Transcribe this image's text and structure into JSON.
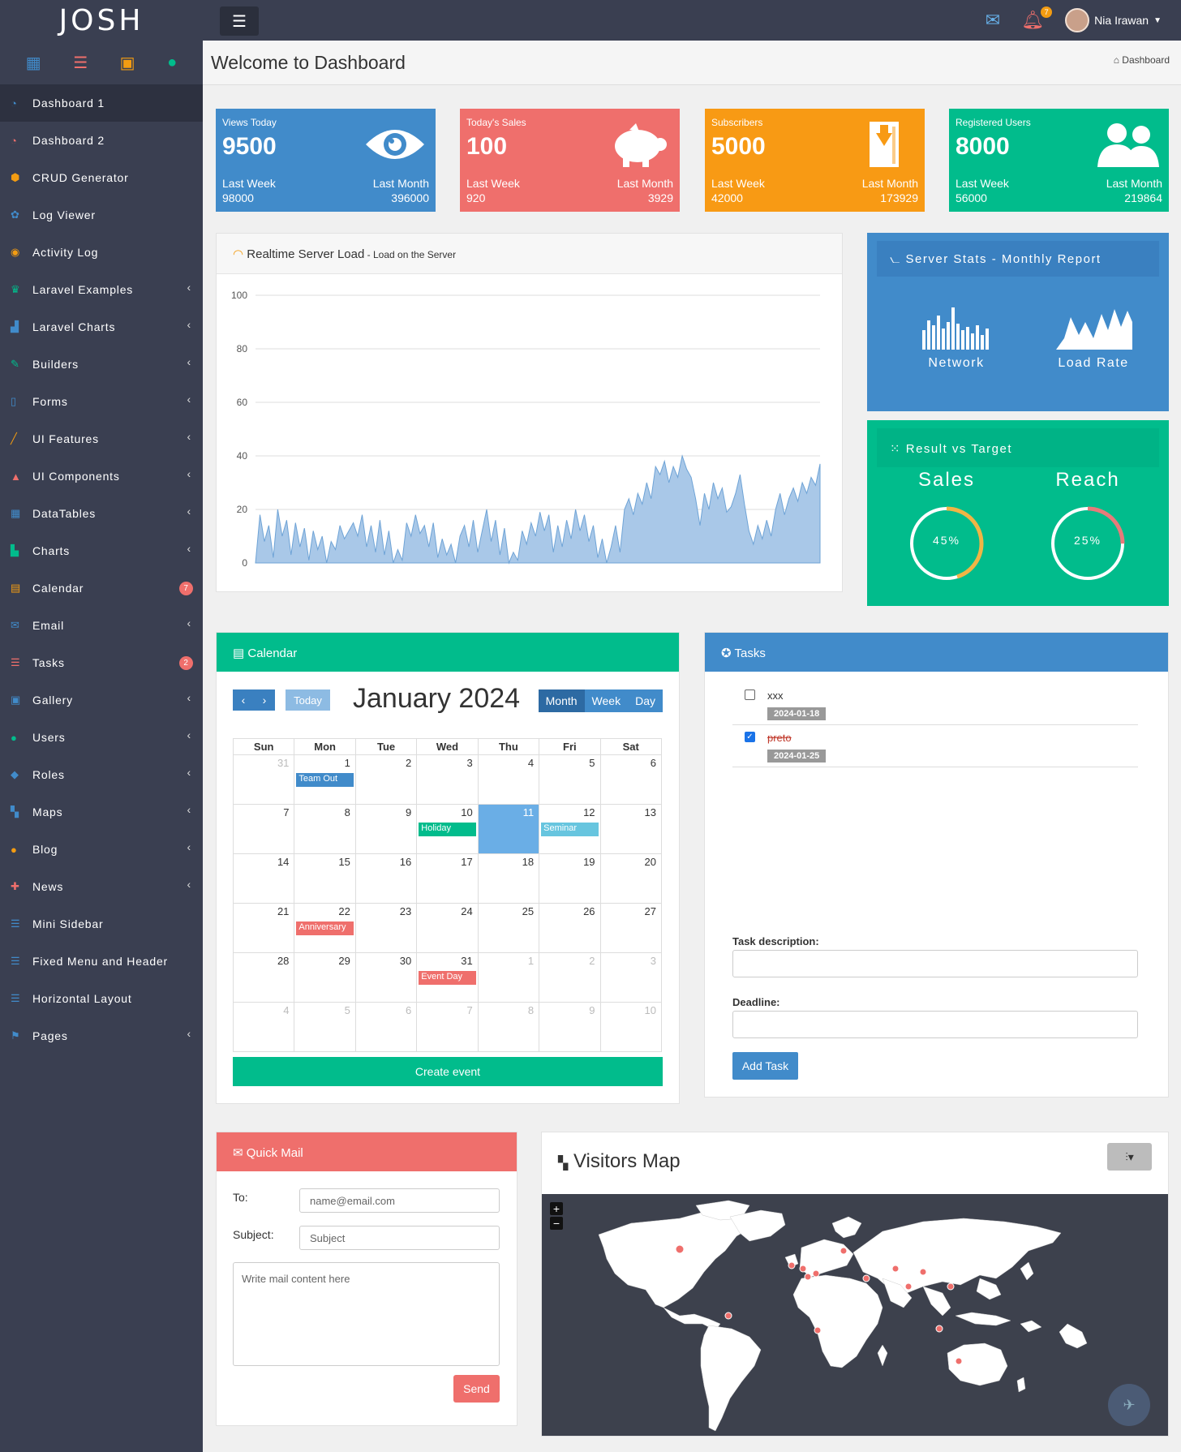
{
  "brand": "JOSH",
  "sidebar": {
    "items": [
      {
        "label": "Dashboard 1",
        "icon": "◔",
        "color": "#418bca",
        "active": true,
        "chev": false,
        "badge": ""
      },
      {
        "label": "Dashboard 2",
        "icon": "◔",
        "color": "#ef6f6c",
        "active": false,
        "chev": false,
        "badge": ""
      },
      {
        "label": "CRUD Generator",
        "icon": "⬢",
        "color": "#f39c12",
        "active": false,
        "chev": false,
        "badge": ""
      },
      {
        "label": "Log Viewer",
        "icon": "✿",
        "color": "#418bca",
        "active": false,
        "chev": false,
        "badge": ""
      },
      {
        "label": "Activity Log",
        "icon": "◉",
        "color": "#f39c12",
        "active": false,
        "chev": false,
        "badge": ""
      },
      {
        "label": "Laravel Examples",
        "icon": "♛",
        "color": "#01bc8c",
        "active": false,
        "chev": true,
        "badge": ""
      },
      {
        "label": "Laravel Charts",
        "icon": "▟",
        "color": "#418bca",
        "active": false,
        "chev": true,
        "badge": ""
      },
      {
        "label": "Builders",
        "icon": "✎",
        "color": "#01bc8c",
        "active": false,
        "chev": true,
        "badge": ""
      },
      {
        "label": "Forms",
        "icon": "▯",
        "color": "#418bca",
        "active": false,
        "chev": true,
        "badge": ""
      },
      {
        "label": "UI Features",
        "icon": "╱",
        "color": "#f39c12",
        "active": false,
        "chev": true,
        "badge": ""
      },
      {
        "label": "UI Components",
        "icon": "▲",
        "color": "#ef6f6c",
        "active": false,
        "chev": true,
        "badge": ""
      },
      {
        "label": "DataTables",
        "icon": "▦",
        "color": "#418bca",
        "active": false,
        "chev": true,
        "badge": ""
      },
      {
        "label": "Charts",
        "icon": "▙",
        "color": "#01bc8c",
        "active": false,
        "chev": true,
        "badge": ""
      },
      {
        "label": "Calendar",
        "icon": "▤",
        "color": "#f39c12",
        "active": false,
        "chev": false,
        "badge": "7"
      },
      {
        "label": "Email",
        "icon": "✉",
        "color": "#418bca",
        "active": false,
        "chev": true,
        "badge": ""
      },
      {
        "label": "Tasks",
        "icon": "☰",
        "color": "#ef6f6c",
        "active": false,
        "chev": false,
        "badge": "2"
      },
      {
        "label": "Gallery",
        "icon": "▣",
        "color": "#418bca",
        "active": false,
        "chev": true,
        "badge": ""
      },
      {
        "label": "Users",
        "icon": "●",
        "color": "#01bc8c",
        "active": false,
        "chev": true,
        "badge": ""
      },
      {
        "label": "Roles",
        "icon": "◆",
        "color": "#418bca",
        "active": false,
        "chev": true,
        "badge": ""
      },
      {
        "label": "Maps",
        "icon": "▚",
        "color": "#418bca",
        "active": false,
        "chev": true,
        "badge": ""
      },
      {
        "label": "Blog",
        "icon": "●",
        "color": "#f39c12",
        "active": false,
        "chev": true,
        "badge": ""
      },
      {
        "label": "News",
        "icon": "✚",
        "color": "#ef6f6c",
        "active": false,
        "chev": true,
        "badge": ""
      },
      {
        "label": "Mini Sidebar",
        "icon": "☰",
        "color": "#418bca",
        "active": false,
        "chev": false,
        "badge": ""
      },
      {
        "label": "Fixed Menu and Header",
        "icon": "☰",
        "color": "#418bca",
        "active": false,
        "chev": false,
        "badge": ""
      },
      {
        "label": "Horizontal Layout",
        "icon": "☰",
        "color": "#418bca",
        "active": false,
        "chev": false,
        "badge": ""
      },
      {
        "label": "Pages",
        "icon": "⚑",
        "color": "#418bca",
        "active": false,
        "chev": true,
        "badge": ""
      }
    ]
  },
  "topbar": {
    "user_name": "Nia Irawan",
    "notif_badge": "7"
  },
  "header": {
    "title": "Welcome to Dashboard",
    "breadcrumb": "Dashboard"
  },
  "stats": [
    {
      "title": "Views Today",
      "value": "9500",
      "last_week_label": "Last Week",
      "last_week": "98000",
      "last_month_label": "Last Month",
      "last_month": "396000",
      "color": "#418bca",
      "icon": "eye-icon"
    },
    {
      "title": "Today's Sales",
      "value": "100",
      "last_week_label": "Last Week",
      "last_week": "920",
      "last_month_label": "Last Month",
      "last_month": "3929",
      "color": "#ef6f6c",
      "icon": "piggy-bank-icon"
    },
    {
      "title": "Subscribers",
      "value": "5000",
      "last_week_label": "Last Week",
      "last_week": "42000",
      "last_month_label": "Last Month",
      "last_month": "173929",
      "color": "#f89a14",
      "icon": "download-archive-icon"
    },
    {
      "title": "Registered Users",
      "value": "8000",
      "last_week_label": "Last Week",
      "last_week": "56000",
      "last_month_label": "Last Month",
      "last_month": "219864",
      "color": "#01bc8c",
      "icon": "users-icon"
    }
  ],
  "server_load": {
    "title": "Realtime Server Load",
    "subtitle": " - Load on the Server"
  },
  "chart_data": {
    "type": "area",
    "title": "",
    "xlabel": "",
    "ylabel": "",
    "ylim": [
      0,
      100
    ],
    "yticks": [
      0,
      20,
      40,
      60,
      80,
      100
    ],
    "grid": true,
    "values": [
      0,
      18,
      8,
      14,
      2,
      20,
      10,
      16,
      3,
      15,
      6,
      13,
      1,
      12,
      5,
      10,
      0,
      8,
      5,
      14,
      9,
      12,
      15,
      10,
      18,
      6,
      14,
      4,
      16,
      3,
      12,
      0,
      5,
      1,
      15,
      10,
      18,
      11,
      14,
      6,
      15,
      2,
      9,
      3,
      7,
      0,
      10,
      14,
      6,
      16,
      4,
      12,
      20,
      8,
      16,
      3,
      13,
      0,
      4,
      1,
      12,
      7,
      15,
      10,
      19,
      12,
      18,
      4,
      14,
      6,
      16,
      9,
      20,
      12,
      18,
      8,
      14,
      2,
      9,
      0,
      6,
      14,
      4,
      20,
      24,
      18,
      26,
      22,
      30,
      24,
      36,
      33,
      38,
      30,
      36,
      32,
      40,
      35,
      32,
      24,
      14,
      26,
      20,
      30,
      24,
      28,
      19,
      21,
      26,
      33,
      22,
      12,
      7,
      14,
      9,
      16,
      10,
      20,
      26,
      18,
      24,
      28,
      23,
      30,
      26,
      32,
      29,
      37
    ]
  },
  "server_stats": {
    "title": "Server Stats - Monthly Report",
    "network_label": "Network",
    "load_label": "Load Rate"
  },
  "rvt": {
    "title": "Result vs Target",
    "sales_label": "Sales",
    "sales_value": "45%",
    "sales_pct": 45,
    "reach_label": "Reach",
    "reach_value": "25%",
    "reach_pct": 25
  },
  "calendar": {
    "header": "Calendar",
    "today_label": "Today",
    "month_title": "January 2024",
    "views": [
      "Month",
      "Week",
      "Day"
    ],
    "weekdays": [
      "Sun",
      "Mon",
      "Tue",
      "Wed",
      "Thu",
      "Fri",
      "Sat"
    ],
    "weeks": [
      [
        {
          "d": "31",
          "o": true
        },
        {
          "d": "1",
          "ev": "Team Out",
          "c": "#418bca"
        },
        {
          "d": "2"
        },
        {
          "d": "3"
        },
        {
          "d": "4"
        },
        {
          "d": "5"
        },
        {
          "d": "6"
        }
      ],
      [
        {
          "d": "7"
        },
        {
          "d": "8"
        },
        {
          "d": "9"
        },
        {
          "d": "10",
          "ev": "Holiday",
          "c": "#01bc8c"
        },
        {
          "d": "11",
          "today": true
        },
        {
          "d": "12",
          "ev": "Seminar",
          "c": "#67c5df"
        },
        {
          "d": "13"
        }
      ],
      [
        {
          "d": "14"
        },
        {
          "d": "15"
        },
        {
          "d": "16"
        },
        {
          "d": "17"
        },
        {
          "d": "18"
        },
        {
          "d": "19"
        },
        {
          "d": "20"
        }
      ],
      [
        {
          "d": "21"
        },
        {
          "d": "22",
          "ev": "Anniversary",
          "c": "#ef6f6c"
        },
        {
          "d": "23"
        },
        {
          "d": "24"
        },
        {
          "d": "25"
        },
        {
          "d": "26"
        },
        {
          "d": "27"
        }
      ],
      [
        {
          "d": "28"
        },
        {
          "d": "29"
        },
        {
          "d": "30"
        },
        {
          "d": "31",
          "ev": "Event Day",
          "c": "#ef6f6c"
        },
        {
          "d": "1",
          "o": true
        },
        {
          "d": "2",
          "o": true
        },
        {
          "d": "3",
          "o": true
        }
      ],
      [
        {
          "d": "4",
          "o": true
        },
        {
          "d": "5",
          "o": true
        },
        {
          "d": "6",
          "o": true
        },
        {
          "d": "7",
          "o": true
        },
        {
          "d": "8",
          "o": true
        },
        {
          "d": "9",
          "o": true
        },
        {
          "d": "10",
          "o": true
        }
      ]
    ],
    "create_label": "Create event"
  },
  "tasks": {
    "header": "Tasks",
    "items": [
      {
        "text": "xxx",
        "date": "2024-01-18",
        "done": false
      },
      {
        "text": "preto",
        "date": "2024-01-25",
        "done": true
      }
    ],
    "desc_label": "Task description:",
    "deadline_label": "Deadline:",
    "add_label": "Add Task"
  },
  "quickmail": {
    "header": "Quick Mail",
    "to_label": "To:",
    "to_placeholder": "name@email.com",
    "subject_label": "Subject:",
    "subject_placeholder": "Subject",
    "body_placeholder": "Write mail content here",
    "send_label": "Send"
  },
  "map": {
    "title": "Visitors Map",
    "zoom_in": "+",
    "zoom_out": "−"
  }
}
